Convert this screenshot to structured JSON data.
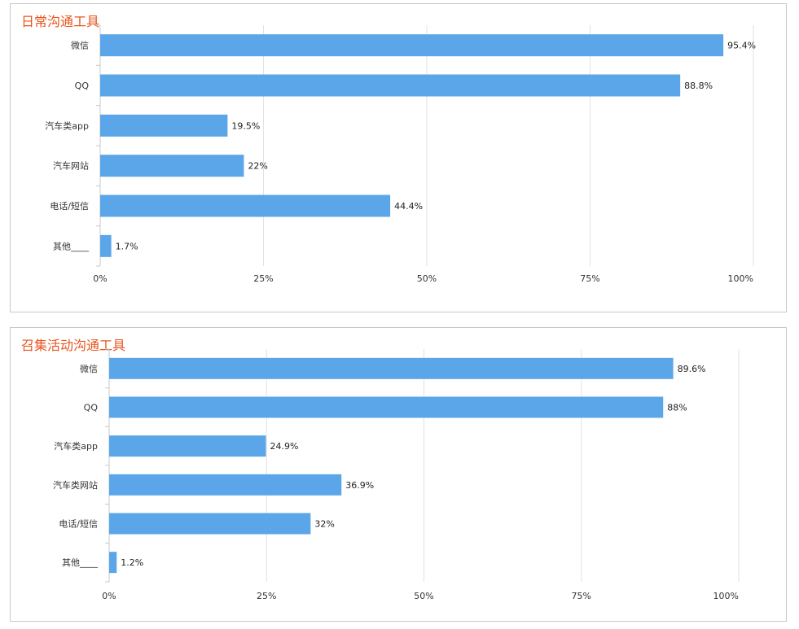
{
  "colors": {
    "bar": "#5ba6e8",
    "title": "#e8541e"
  },
  "chart_data": [
    {
      "type": "bar",
      "orientation": "horizontal",
      "title": "日常沟通工具",
      "categories": [
        "微信",
        "QQ",
        "汽车类app",
        "汽车网站",
        "电话/短信",
        "其他____"
      ],
      "values": [
        95.4,
        88.8,
        19.5,
        22,
        44.4,
        1.7
      ],
      "value_labels": [
        "95.4%",
        "88.8%",
        "19.5%",
        "22%",
        "44.4%",
        "1.7%"
      ],
      "xlim": [
        0,
        100
      ],
      "x_ticks": [
        0,
        25,
        50,
        75,
        100
      ],
      "x_tick_labels": [
        "0%",
        "25%",
        "50%",
        "75%",
        "100%"
      ],
      "grid": true
    },
    {
      "type": "bar",
      "orientation": "horizontal",
      "title": "召集活动沟通工具",
      "categories": [
        "微信",
        "QQ",
        "汽车类app",
        "汽车类网站",
        "电话/短信",
        "其他____"
      ],
      "values": [
        89.6,
        88,
        24.9,
        36.9,
        32,
        1.2
      ],
      "value_labels": [
        "89.6%",
        "88%",
        "24.9%",
        "36.9%",
        "32%",
        "1.2%"
      ],
      "xlim": [
        0,
        100
      ],
      "x_ticks": [
        0,
        25,
        50,
        75,
        100
      ],
      "x_tick_labels": [
        "0%",
        "25%",
        "50%",
        "75%",
        "100%"
      ],
      "grid": true
    }
  ]
}
